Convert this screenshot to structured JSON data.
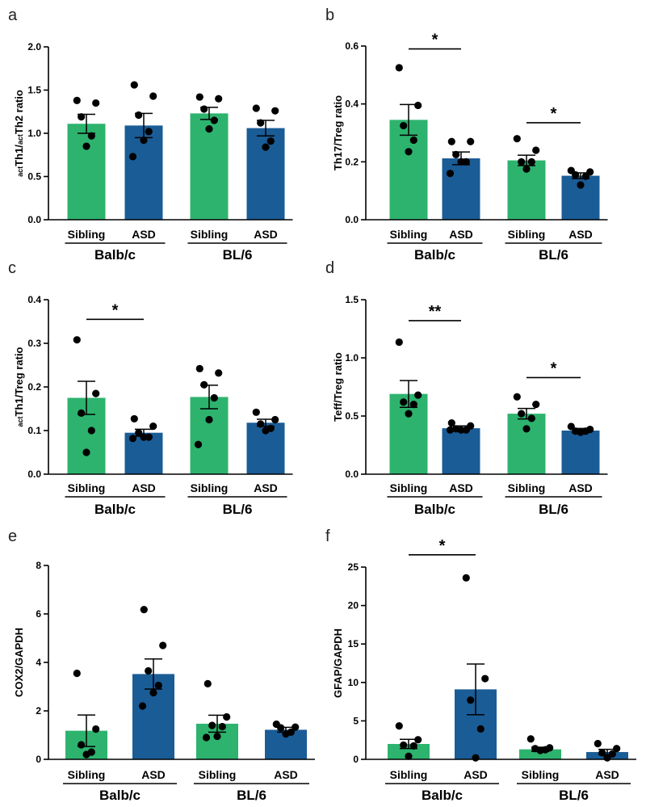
{
  "colors": {
    "sibling": "#2db36e",
    "asd": "#1a5c96",
    "ink": "#000000"
  },
  "chart_data": [
    {
      "type": "bar",
      "letter": "a",
      "ylabel": {
        "sub": "act",
        "main": "Th1/",
        "sub2": "act",
        "main2": "Th2 ratio"
      },
      "ylim": [
        0,
        2.0
      ],
      "yticks": [
        "0.0",
        "0.5",
        "1.0",
        "1.5",
        "2.0"
      ],
      "categories": [
        "Sibling",
        "ASD",
        "Sibling",
        "ASD"
      ],
      "groups": [
        "Balb/c",
        "BL/6"
      ],
      "values": [
        1.11,
        1.09,
        1.23,
        1.06
      ],
      "sem": [
        0.11,
        0.14,
        0.07,
        0.09
      ],
      "points": [
        [
          1.38,
          1.35,
          1.19,
          0.97,
          0.85
        ],
        [
          1.56,
          1.43,
          1.21,
          1.02,
          0.92,
          0.73
        ],
        [
          1.42,
          1.4,
          1.28,
          1.15,
          1.05
        ],
        [
          1.29,
          1.26,
          1.12,
          0.91,
          0.84
        ]
      ],
      "significance": [],
      "title": "",
      "xlabel": ""
    },
    {
      "type": "bar",
      "letter": "b",
      "ylabel": {
        "main": "Th17/Treg ratio"
      },
      "ylim": [
        0,
        0.6
      ],
      "yticks": [
        "0.0",
        "0.2",
        "0.4",
        "0.6"
      ],
      "categories": [
        "Sibling",
        "ASD",
        "Sibling",
        "ASD"
      ],
      "groups": [
        "Balb/c",
        "BL/6"
      ],
      "values": [
        0.345,
        0.212,
        0.205,
        0.152
      ],
      "sem": [
        0.053,
        0.022,
        0.018,
        0.01
      ],
      "points": [
        [
          0.525,
          0.395,
          0.325,
          0.275,
          0.235
        ],
        [
          0.27,
          0.27,
          0.225,
          0.2,
          0.2,
          0.16
        ],
        [
          0.28,
          0.24,
          0.2,
          0.2,
          0.175
        ],
        [
          0.17,
          0.165,
          0.155,
          0.15,
          0.12
        ]
      ],
      "significance": [
        {
          "label": "*",
          "from": 0,
          "to": 1,
          "y": 0.59
        },
        {
          "label": "*",
          "from": 2,
          "to": 3,
          "y": 0.335
        }
      ],
      "title": "",
      "xlabel": ""
    },
    {
      "type": "bar",
      "letter": "c",
      "ylabel": {
        "sub": "act",
        "main": "Th1/Treg ratio"
      },
      "ylim": [
        0,
        0.4
      ],
      "yticks": [
        "0.0",
        "0.1",
        "0.2",
        "0.3",
        "0.4"
      ],
      "categories": [
        "Sibling",
        "ASD",
        "Sibling",
        "ASD"
      ],
      "groups": [
        "Balb/c",
        "BL/6"
      ],
      "values": [
        0.175,
        0.095,
        0.177,
        0.118
      ],
      "sem": [
        0.038,
        0.008,
        0.027,
        0.008
      ],
      "points": [
        [
          0.308,
          0.185,
          0.14,
          0.1,
          0.05
        ],
        [
          0.127,
          0.11,
          0.095,
          0.085,
          0.085,
          0.082
        ],
        [
          0.242,
          0.232,
          0.205,
          0.175,
          0.125,
          0.068
        ],
        [
          0.142,
          0.125,
          0.115,
          0.105,
          0.1
        ]
      ],
      "significance": [
        {
          "label": "*",
          "from": 0,
          "to": 1,
          "y": 0.355
        }
      ],
      "title": "",
      "xlabel": ""
    },
    {
      "type": "bar",
      "letter": "d",
      "ylabel": {
        "main": "Teff/Treg ratio"
      },
      "ylim": [
        0,
        1.5
      ],
      "yticks": [
        "0.0",
        "0.5",
        "1.0",
        "1.5"
      ],
      "categories": [
        "Sibling",
        "ASD",
        "Sibling",
        "ASD"
      ],
      "groups": [
        "Balb/c",
        "BL/6"
      ],
      "values": [
        0.69,
        0.395,
        0.52,
        0.375
      ],
      "sem": [
        0.115,
        0.02,
        0.045,
        0.018
      ],
      "points": [
        [
          1.135,
          0.68,
          0.62,
          0.6,
          0.52
        ],
        [
          0.44,
          0.415,
          0.39,
          0.38,
          0.38,
          0.38
        ],
        [
          0.665,
          0.6,
          0.52,
          0.48,
          0.39
        ],
        [
          0.41,
          0.385,
          0.37,
          0.37,
          0.36
        ]
      ],
      "significance": [
        {
          "label": "**",
          "from": 0,
          "to": 1,
          "y": 1.32
        },
        {
          "label": "*",
          "from": 2,
          "to": 3,
          "y": 0.83
        }
      ],
      "title": "",
      "xlabel": ""
    },
    {
      "type": "bar",
      "letter": "e",
      "ylabel": {
        "main": "COX2/GAPDH"
      },
      "ylim": [
        0,
        8
      ],
      "yticks": [
        "0",
        "2",
        "4",
        "6",
        "8"
      ],
      "categories": [
        "Sibling",
        "ASD",
        "Sibling",
        "ASD"
      ],
      "groups": [
        "Balb/c",
        "BL/6"
      ],
      "values": [
        1.18,
        3.52,
        1.47,
        1.22
      ],
      "sem": [
        0.65,
        0.62,
        0.35,
        0.1
      ],
      "points": [
        [
          3.55,
          1.25,
          0.6,
          0.3,
          0.2
        ],
        [
          6.18,
          4.7,
          3.65,
          3.05,
          2.75,
          2.2
        ],
        [
          3.12,
          1.75,
          1.4,
          1.35,
          0.95,
          0.9
        ],
        [
          1.45,
          1.33,
          1.3,
          1.12,
          1.05
        ]
      ],
      "significance": [],
      "title": "",
      "xlabel": ""
    },
    {
      "type": "bar",
      "letter": "f",
      "ylabel": {
        "main": "GFAP/GAPDH"
      },
      "ylim": [
        0,
        25
      ],
      "yticks": [
        "0",
        "5",
        "10",
        "15",
        "20",
        "25"
      ],
      "categories": [
        "Sibling",
        "ASD",
        "Sibling",
        "ASD"
      ],
      "groups": [
        "Balb/c",
        "BL/6"
      ],
      "values": [
        2.0,
        9.1,
        1.3,
        0.95
      ],
      "sem": [
        0.6,
        3.3,
        0.28,
        0.35
      ],
      "points": [
        [
          4.35,
          2.55,
          1.85,
          1.75,
          0.4
        ],
        [
          23.6,
          10.5,
          7.7,
          3.95,
          0.2
        ],
        [
          2.65,
          1.5,
          1.4,
          1.25,
          1.15
        ],
        [
          2.05,
          1.4,
          0.85,
          0.7,
          0.2
        ]
      ],
      "significance": [
        {
          "label": "*",
          "from": 0,
          "to": 1,
          "y": 26.6
        }
      ],
      "title": "",
      "xlabel": ""
    }
  ]
}
